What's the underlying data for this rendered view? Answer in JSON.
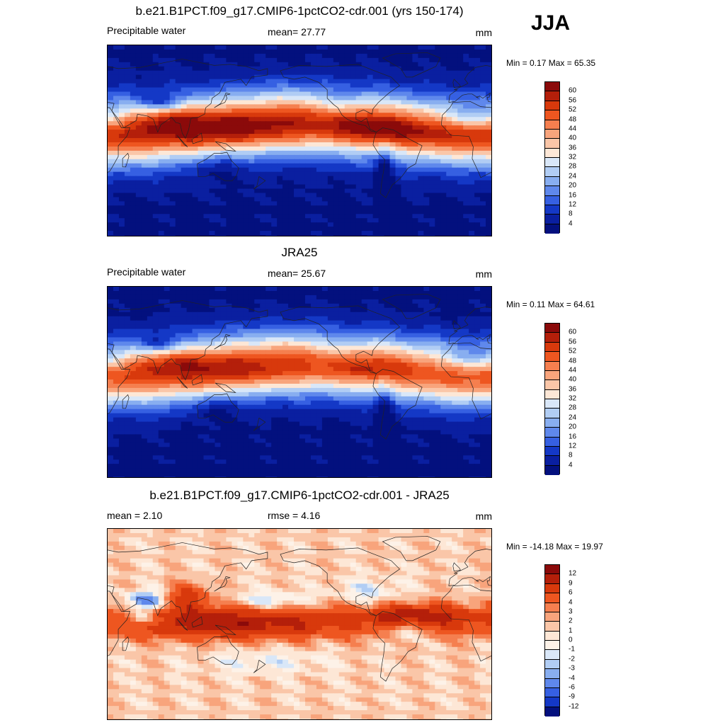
{
  "season": "JJA",
  "panels": [
    {
      "title": "b.e21.B1PCT.f09_g17.CMIP6-1pctCO2-cdr.001 (yrs 150-174)",
      "left_label": "Precipitable water",
      "center_label": "mean=  27.77",
      "unit": "mm",
      "minmax": "Min =   0.17 Max =  65.35",
      "colorbar": {
        "ticks": [
          "60",
          "56",
          "52",
          "48",
          "44",
          "40",
          "36",
          "32",
          "28",
          "24",
          "20",
          "16",
          "12",
          "8",
          "4"
        ],
        "colors": [
          "#8b0a0a",
          "#b41f0a",
          "#d8390c",
          "#ee5620",
          "#f57f4f",
          "#f8a47c",
          "#fac6a8",
          "#fde7d6",
          "#d9e7f8",
          "#b1cdf4",
          "#88aef0",
          "#5f88ec",
          "#3660e2",
          "#1438c6",
          "#0a1fa0",
          "#03107e"
        ]
      },
      "field": "model"
    },
    {
      "title": "JRA25",
      "left_label": "Precipitable water",
      "center_label": "mean=  25.67",
      "unit": "mm",
      "minmax": "Min =   0.11 Max =  64.61",
      "colorbar": {
        "ticks": [
          "60",
          "56",
          "52",
          "48",
          "44",
          "40",
          "36",
          "32",
          "28",
          "24",
          "20",
          "16",
          "12",
          "8",
          "4"
        ],
        "colors": [
          "#8b0a0a",
          "#b41f0a",
          "#d8390c",
          "#ee5620",
          "#f57f4f",
          "#f8a47c",
          "#fac6a8",
          "#fde7d6",
          "#d9e7f8",
          "#b1cdf4",
          "#88aef0",
          "#5f88ec",
          "#3660e2",
          "#1438c6",
          "#0a1fa0",
          "#03107e"
        ]
      },
      "field": "obs"
    },
    {
      "title": "b.e21.B1PCT.f09_g17.CMIP6-1pctCO2-cdr.001 - JRA25",
      "left_label": "mean =   2.10",
      "center_label": "rmse =   4.16",
      "unit": "mm",
      "minmax": "Min = -14.18 Max =  19.97",
      "colorbar": {
        "ticks": [
          "12",
          "9",
          "6",
          "4",
          "3",
          "2",
          "1",
          "0",
          "-1",
          "-2",
          "-3",
          "-4",
          "-6",
          "-9",
          "-12"
        ],
        "colors": [
          "#8b0a0a",
          "#b41f0a",
          "#d8390c",
          "#ee5620",
          "#f57f4f",
          "#f8a47c",
          "#fac6a8",
          "#fde7d6",
          "#fdf2e8",
          "#d9e7f8",
          "#b1cdf4",
          "#88aef0",
          "#5f88ec",
          "#3660e2",
          "#1438c6",
          "#03107e"
        ]
      },
      "field": "diff"
    }
  ]
}
